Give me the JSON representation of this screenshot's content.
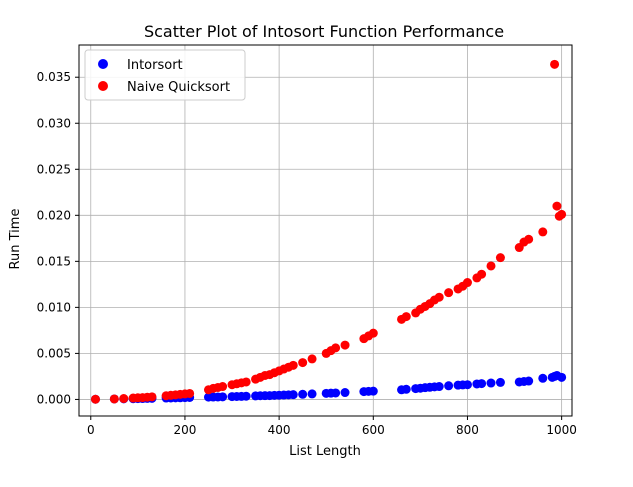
{
  "chart_data": {
    "type": "scatter",
    "title": "Scatter Plot of Intosort Function Performance",
    "xlabel": "List Length",
    "ylabel": "Run Time",
    "xlim": [
      -25,
      1022
    ],
    "ylim": [
      -0.0018,
      0.0385
    ],
    "xticks": [
      "0",
      "200",
      "400",
      "600",
      "800",
      "1000"
    ],
    "xtick_values": [
      0,
      200,
      400,
      600,
      800,
      1000
    ],
    "yticks": [
      "0.000",
      "0.005",
      "0.010",
      "0.015",
      "0.020",
      "0.025",
      "0.030",
      "0.035"
    ],
    "ytick_values": [
      0,
      0.005,
      0.01,
      0.015,
      0.02,
      0.025,
      0.03,
      0.035
    ],
    "grid": true,
    "legend_position": "top-left",
    "series": [
      {
        "name": "Intorsort",
        "color": "#0000ff",
        "x": [
          10,
          50,
          70,
          90,
          100,
          110,
          120,
          130,
          160,
          170,
          180,
          190,
          200,
          210,
          250,
          260,
          270,
          280,
          300,
          310,
          320,
          330,
          350,
          360,
          370,
          380,
          390,
          400,
          410,
          420,
          430,
          450,
          470,
          500,
          510,
          520,
          540,
          580,
          590,
          600,
          660,
          670,
          690,
          700,
          710,
          720,
          730,
          740,
          760,
          780,
          790,
          800,
          820,
          830,
          850,
          870,
          910,
          920,
          930,
          960,
          980,
          985,
          990,
          1000
        ],
        "y": [
          2e-05,
          5e-05,
          6e-05,
          8e-05,
          9e-05,
          0.0001,
          0.00011,
          0.00012,
          0.00015,
          0.00016,
          0.00017,
          0.00018,
          0.0002,
          0.00021,
          0.00025,
          0.00026,
          0.00027,
          0.00028,
          0.00031,
          0.00032,
          0.00033,
          0.00035,
          0.00038,
          0.0004,
          0.00041,
          0.00042,
          0.00044,
          0.00046,
          0.00048,
          0.0005,
          0.00052,
          0.00056,
          0.0006,
          0.00066,
          0.00068,
          0.0007,
          0.00075,
          0.00085,
          0.00088,
          0.0009,
          0.00105,
          0.0011,
          0.00118,
          0.00122,
          0.00128,
          0.00132,
          0.00137,
          0.0014,
          0.00148,
          0.00155,
          0.00158,
          0.0016,
          0.00168,
          0.00172,
          0.00178,
          0.00185,
          0.0019,
          0.00195,
          0.002,
          0.0023,
          0.0024,
          0.0025,
          0.0026,
          0.0024
        ]
      },
      {
        "name": "Naive Quicksort",
        "color": "#ff0000",
        "x": [
          10,
          50,
          70,
          90,
          100,
          110,
          120,
          130,
          160,
          170,
          180,
          190,
          200,
          210,
          250,
          260,
          270,
          280,
          300,
          310,
          320,
          330,
          350,
          360,
          370,
          380,
          390,
          400,
          410,
          420,
          430,
          450,
          470,
          500,
          510,
          520,
          540,
          580,
          590,
          600,
          660,
          670,
          690,
          700,
          710,
          720,
          730,
          740,
          760,
          780,
          790,
          800,
          820,
          830,
          850,
          870,
          910,
          920,
          930,
          960,
          985,
          990,
          1000,
          995
        ],
        "y": [
          2e-05,
          5e-05,
          0.0001,
          0.00015,
          0.00018,
          0.0002,
          0.00024,
          0.00028,
          0.0004,
          0.00045,
          0.0005,
          0.00055,
          0.0006,
          0.00065,
          0.00105,
          0.0012,
          0.0013,
          0.0014,
          0.0016,
          0.0017,
          0.0018,
          0.0019,
          0.0022,
          0.0024,
          0.0026,
          0.0027,
          0.0029,
          0.0031,
          0.0033,
          0.0035,
          0.0037,
          0.004,
          0.0044,
          0.005,
          0.0053,
          0.0056,
          0.0059,
          0.0066,
          0.0069,
          0.0072,
          0.0087,
          0.009,
          0.0094,
          0.0098,
          0.0101,
          0.0104,
          0.0108,
          0.0111,
          0.0116,
          0.012,
          0.0123,
          0.0127,
          0.0132,
          0.0136,
          0.0145,
          0.0154,
          0.0165,
          0.0171,
          0.0174,
          0.0182,
          0.0364,
          0.021,
          0.0201,
          0.0199
        ]
      }
    ]
  }
}
